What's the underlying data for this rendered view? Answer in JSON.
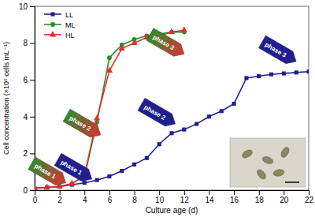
{
  "chart_data": {
    "type": "line",
    "x_label": "Culture age (d)",
    "y_label": "Cell concentration (×10⁶ cells mL⁻¹)",
    "xlim": [
      0,
      22
    ],
    "xticks": [
      0,
      2,
      4,
      6,
      8,
      10,
      12,
      14,
      16,
      18,
      20,
      22
    ],
    "ylim": [
      0,
      10
    ],
    "yticks": [
      0,
      2,
      4,
      6,
      8,
      10
    ],
    "legend": "upper left",
    "series": [
      {
        "name": "LL",
        "color": "#1f1f8f",
        "marker": "square",
        "x": [
          0,
          1,
          2,
          3,
          4,
          5,
          6,
          7,
          8,
          9,
          10,
          11,
          12,
          13,
          14,
          15,
          16,
          17,
          18,
          19,
          20,
          21,
          22
        ],
        "values": [
          0.1,
          0.15,
          0.2,
          0.3,
          0.4,
          0.55,
          0.75,
          1.05,
          1.4,
          1.75,
          2.5,
          3.1,
          3.3,
          3.6,
          4.0,
          4.3,
          4.7,
          6.1,
          6.2,
          6.3,
          6.35,
          6.4,
          6.45
        ]
      },
      {
        "name": "ML",
        "color": "#2e8b2e",
        "marker": "circle",
        "x": [
          0,
          1,
          2,
          3,
          4,
          5,
          6,
          7,
          8,
          9,
          10,
          11,
          12
        ],
        "values": [
          0.1,
          0.15,
          0.2,
          0.35,
          0.75,
          3.7,
          7.2,
          7.9,
          8.2,
          8.4,
          8.5,
          8.6,
          8.6
        ]
      },
      {
        "name": "HL",
        "color": "#e03030",
        "marker": "triangle",
        "x": [
          0,
          1,
          2,
          3,
          4,
          5,
          6,
          7,
          8,
          9,
          10,
          11,
          12
        ],
        "values": [
          0.1,
          0.15,
          0.2,
          0.35,
          0.8,
          3.9,
          6.5,
          7.7,
          8.0,
          8.3,
          8.4,
          8.6,
          8.7
        ]
      }
    ],
    "annotations": [
      {
        "text": "phase 1",
        "x": 2.5,
        "y": 0.4,
        "colors": [
          "#2e8b2e",
          "#e03030"
        ]
      },
      {
        "text": "phase 1",
        "x": 4.6,
        "y": 0.6,
        "colors": [
          "#1f1f8f",
          "#1f1f8f"
        ]
      },
      {
        "text": "phase 2",
        "x": 5.3,
        "y": 3.0,
        "colors": [
          "#2e8b2e",
          "#e03030"
        ]
      },
      {
        "text": "phase 2",
        "x": 11.3,
        "y": 3.6,
        "colors": [
          "#1f1f8f",
          "#1f1f8f"
        ]
      },
      {
        "text": "phase 3",
        "x": 12.0,
        "y": 7.4,
        "colors": [
          "#2e8b2e",
          "#e03030"
        ]
      },
      {
        "text": "phase 3",
        "x": 21.0,
        "y": 7.0,
        "colors": [
          "#1f1f8f",
          "#1f1f8f"
        ]
      }
    ]
  }
}
